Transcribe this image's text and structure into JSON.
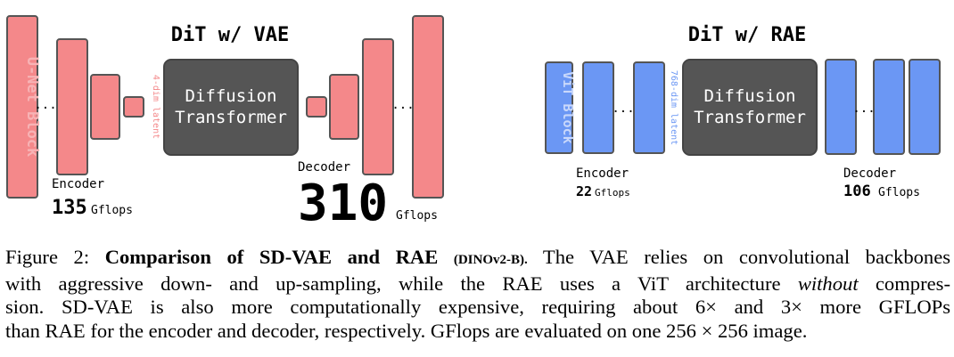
{
  "figure": {
    "left_panel": {
      "title": "DiT w/ VAE",
      "unet_label": "U-Net Block",
      "latent_label": "4-dim latent",
      "transformer_line1": "Diffusion",
      "transformer_line2": "Transformer",
      "ellipsis": "...",
      "encoder_label": "Encoder",
      "encoder_flops_value": "135",
      "decoder_label": "Decoder",
      "decoder_flops_value": "310",
      "flops_unit": "Gflops"
    },
    "right_panel": {
      "title": "DiT w/ RAE",
      "vit_label": "ViT Block",
      "latent_label": "768-dim latent",
      "transformer_line1": "Diffusion",
      "transformer_line2": "Transformer",
      "ellipsis": "...",
      "encoder_label": "Encoder",
      "encoder_flops_value": "22",
      "decoder_label": "Decoder",
      "decoder_flops_value": "106",
      "flops_unit": "Gflops"
    },
    "colors": {
      "vae_block": "#f4888a",
      "rae_block": "#6b97f4",
      "transformer": "#555555",
      "stroke": "#555555",
      "vae_text": "#f7b3b5",
      "rae_text": "#c9d8fb"
    }
  },
  "caption": {
    "figure_label": "Figure 2:",
    "bold_title": "Comparison of SD-VAE and RAE",
    "small_caps": "(DINOv2-B).",
    "line1_rest": "The VAE relies on convolutional backbones",
    "line2_pre": "with aggressive down- and up-sampling, while the RAE uses a ViT architecture",
    "line2_italic": "without",
    "line2_post": "compres-",
    "line3": "sion. SD-VAE is also more computationally expensive, requiring about 6× and 3× more GFLOPs",
    "line4": "than RAE for the encoder and decoder, respectively. GFlops are evaluated on one 256 × 256 image."
  }
}
